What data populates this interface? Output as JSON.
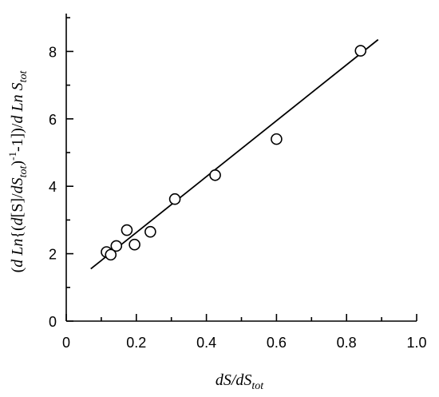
{
  "chart_data": {
    "type": "scatter",
    "xlabel": "dS/dStot",
    "ylabel": "(d Ln{(d[S]/dStot)-1-1})/d Ln Stot",
    "xlim": [
      0,
      1.0
    ],
    "ylim": [
      0,
      9
    ],
    "x_ticks": [
      "0",
      "0.2",
      "0.4",
      "0.6",
      "0.8",
      "1.0"
    ],
    "y_ticks": [
      "0",
      "2",
      "4",
      "6",
      "8"
    ],
    "grid": false,
    "legend": "none",
    "series": [
      {
        "marker": "open-circle",
        "points": [
          {
            "x": 0.115,
            "y": 2.05
          },
          {
            "x": 0.127,
            "y": 1.97
          },
          {
            "x": 0.143,
            "y": 2.23
          },
          {
            "x": 0.173,
            "y": 2.7
          },
          {
            "x": 0.195,
            "y": 2.27
          },
          {
            "x": 0.24,
            "y": 2.65
          },
          {
            "x": 0.31,
            "y": 3.62
          },
          {
            "x": 0.425,
            "y": 4.33
          },
          {
            "x": 0.6,
            "y": 5.4
          },
          {
            "x": 0.84,
            "y": 8.02
          }
        ]
      }
    ],
    "fit_line": {
      "x": [
        0.07,
        0.89
      ],
      "y": [
        1.55,
        8.35
      ]
    }
  }
}
